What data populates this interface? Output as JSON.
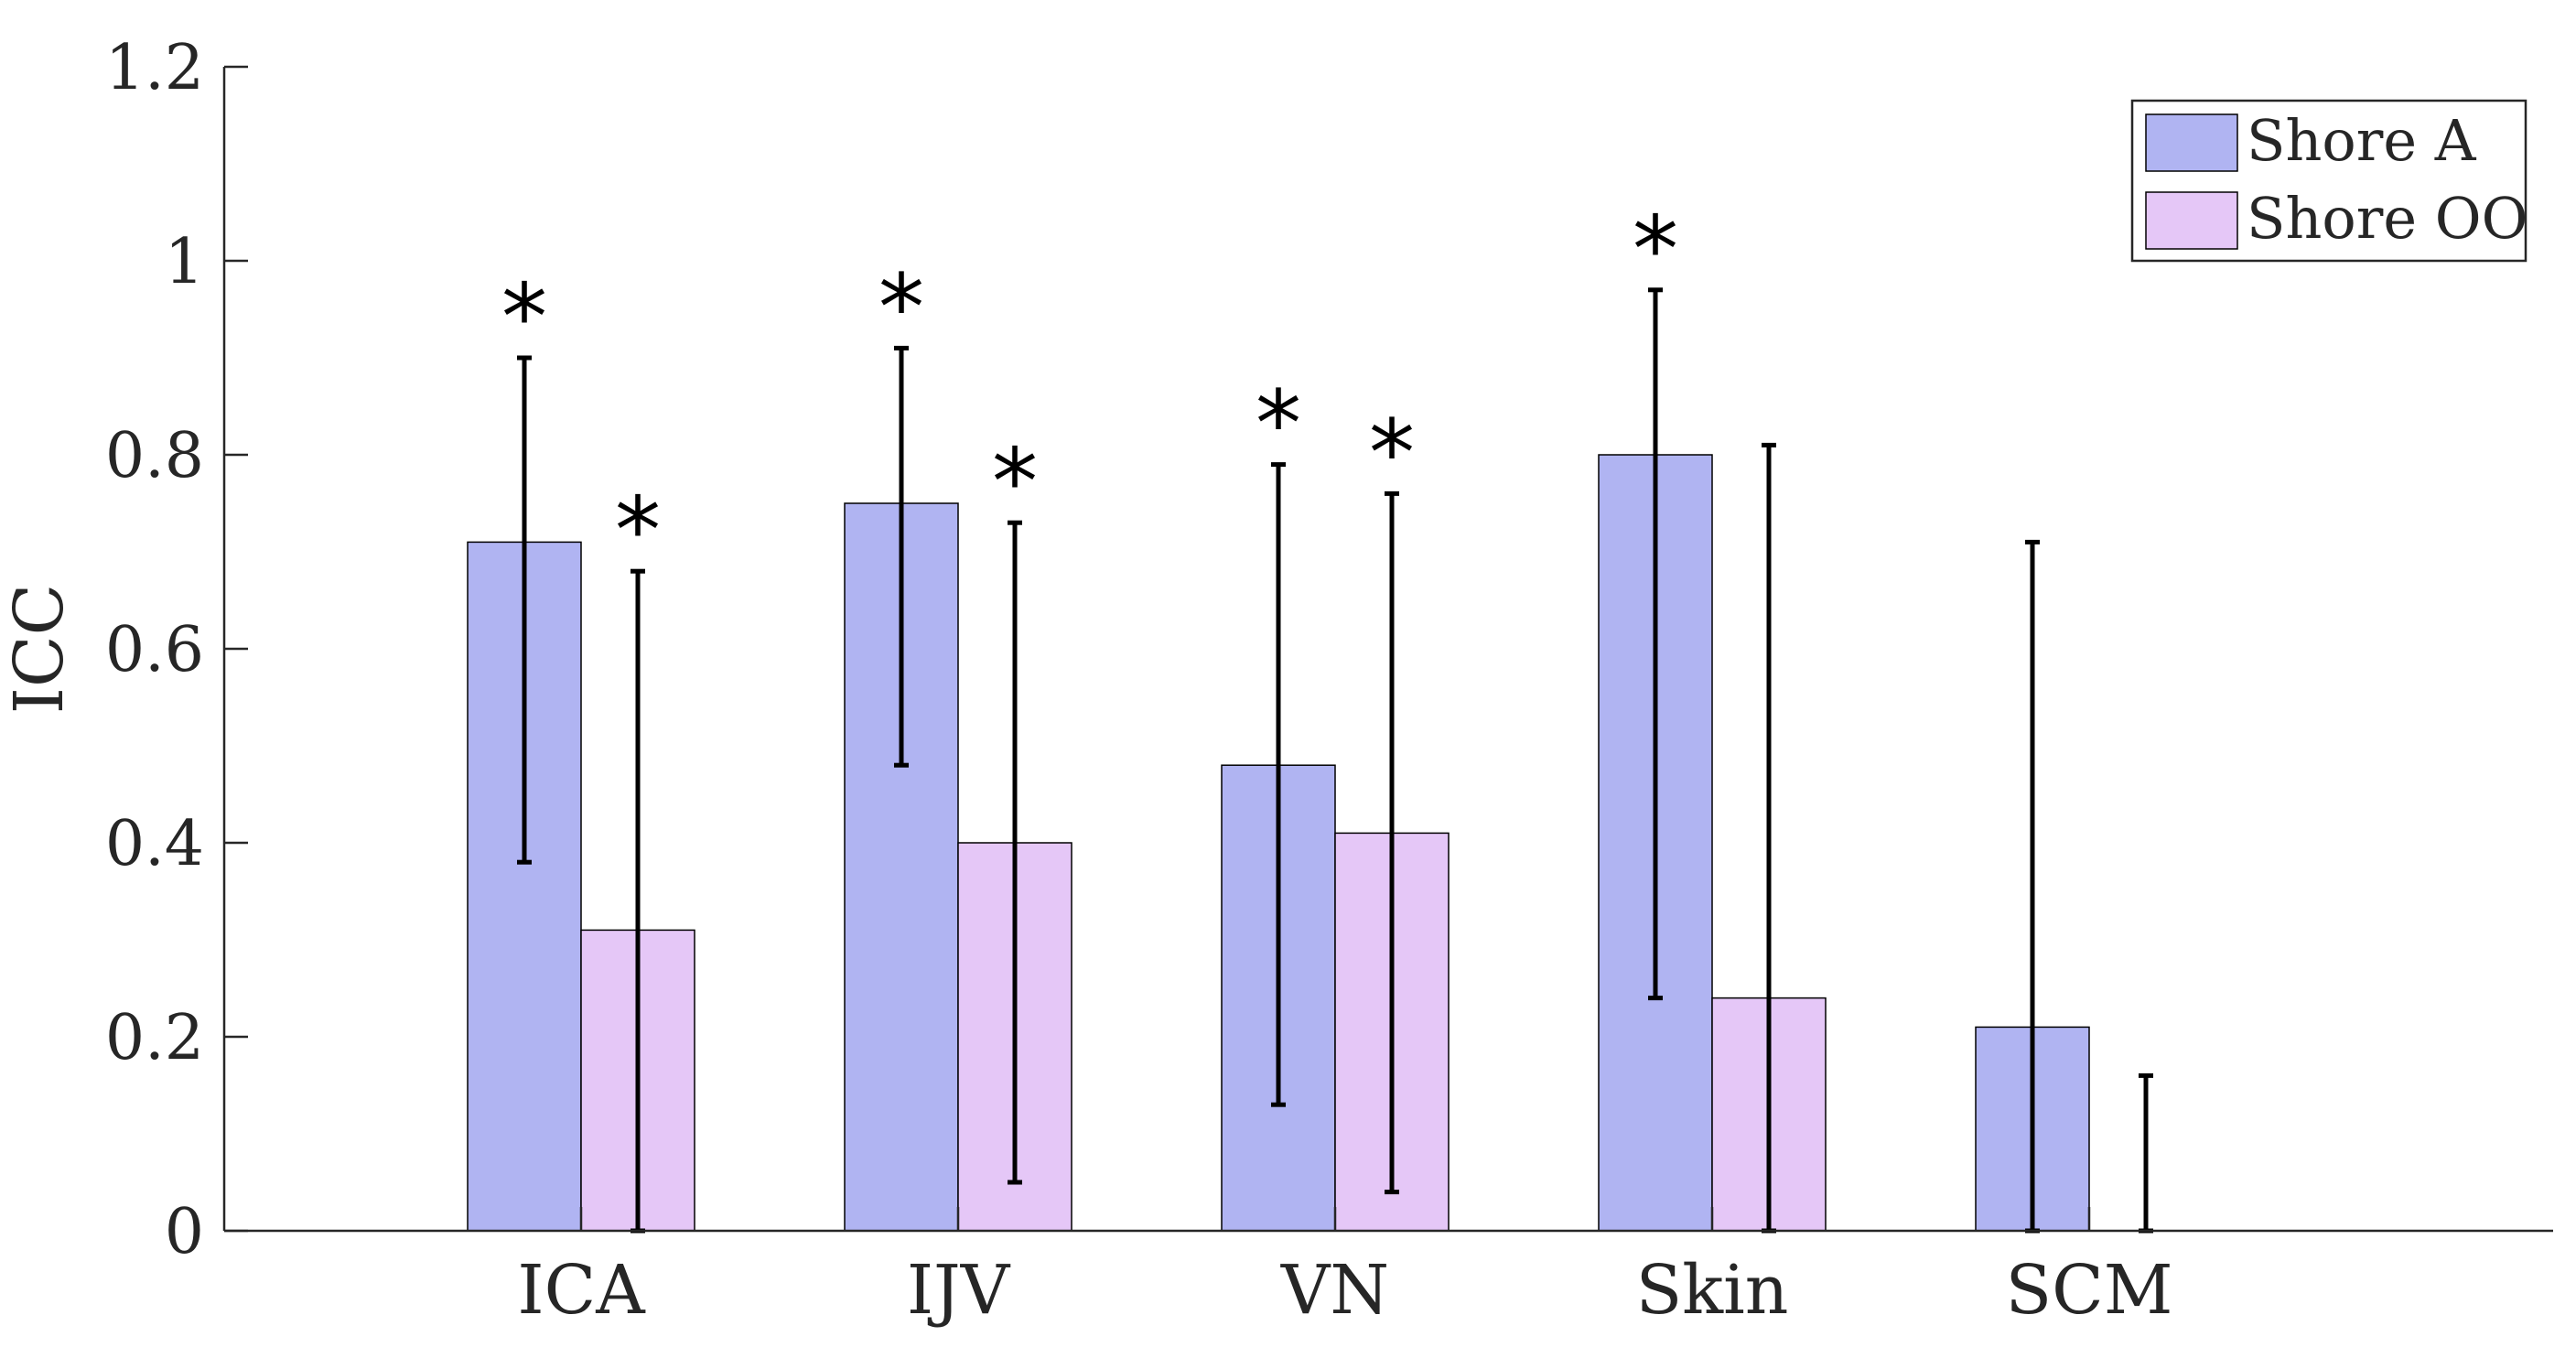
{
  "chart_data": {
    "type": "bar",
    "title": "",
    "xlabel": "",
    "ylabel": "ICC",
    "ylim": [
      0,
      1.2
    ],
    "yticks": [
      0,
      0.2,
      0.4,
      0.6,
      0.8,
      1,
      1.2
    ],
    "ytick_labels": [
      "0",
      "0.2",
      "0.4",
      "0.6",
      "0.8",
      "1",
      "1.2"
    ],
    "categories": [
      "ICA",
      "IJV",
      "VN",
      "Skin",
      "SCM"
    ],
    "legend_position": "top-right",
    "series": [
      {
        "name": "Shore A",
        "color": "#b0b4f2",
        "values": [
          0.71,
          0.75,
          0.48,
          0.8,
          0.21
        ],
        "error_low": [
          0.38,
          0.48,
          0.13,
          0.24,
          0.0
        ],
        "error_high": [
          0.9,
          0.91,
          0.79,
          0.97,
          0.71
        ],
        "significant": [
          true,
          true,
          true,
          true,
          false
        ]
      },
      {
        "name": "Shore OO",
        "color": "#e5c7f7",
        "values": [
          0.31,
          0.4,
          0.41,
          0.24,
          0.0
        ],
        "error_low": [
          0.0,
          0.05,
          0.04,
          0.0,
          0.0
        ],
        "error_high": [
          0.68,
          0.73,
          0.76,
          0.81,
          0.16
        ],
        "significant": [
          true,
          true,
          true,
          false,
          false
        ]
      }
    ],
    "significance_marker": "*"
  }
}
